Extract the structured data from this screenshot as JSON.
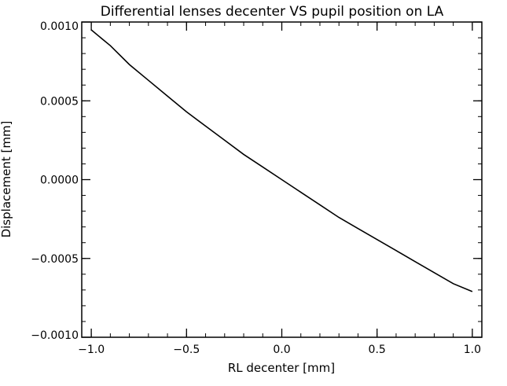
{
  "chart_data": {
    "type": "line",
    "title": "Differential lenses decenter VS pupil position on LA",
    "xlabel": "RL decenter [mm]",
    "ylabel": "Displacement [mm]",
    "xlim": [
      -1.05,
      1.05
    ],
    "ylim": [
      -0.001,
      0.001
    ],
    "grid": false,
    "x_ticks": [
      -1.0,
      -0.5,
      0.0,
      0.5,
      1.0
    ],
    "x_tick_labels": [
      "−1.0",
      "−0.5",
      "0.0",
      "0.5",
      "1.0"
    ],
    "y_ticks": [
      -0.001,
      -0.0005,
      0.0,
      0.0005,
      0.001
    ],
    "y_tick_labels": [
      "−0.0010",
      "−0.0005",
      "0.0000",
      "0.0005",
      "0.0010"
    ],
    "series": [
      {
        "color": "#000000",
        "x": [
          -1.0,
          -0.9,
          -0.8,
          -0.7,
          -0.6,
          -0.5,
          -0.4,
          -0.3,
          -0.2,
          -0.1,
          0.0,
          0.1,
          0.2,
          0.3,
          0.4,
          0.5,
          0.6,
          0.7,
          0.8,
          0.9,
          1.0
        ],
        "y": [
          0.00095,
          0.00085,
          0.00073,
          0.00063,
          0.00053,
          0.00043,
          0.00034,
          0.00025,
          0.00016,
          8e-05,
          0.0,
          -8e-05,
          -0.00016,
          -0.00024,
          -0.00031,
          -0.00038,
          -0.00045,
          -0.00052,
          -0.00059,
          -0.00066,
          -0.00071
        ]
      }
    ]
  }
}
